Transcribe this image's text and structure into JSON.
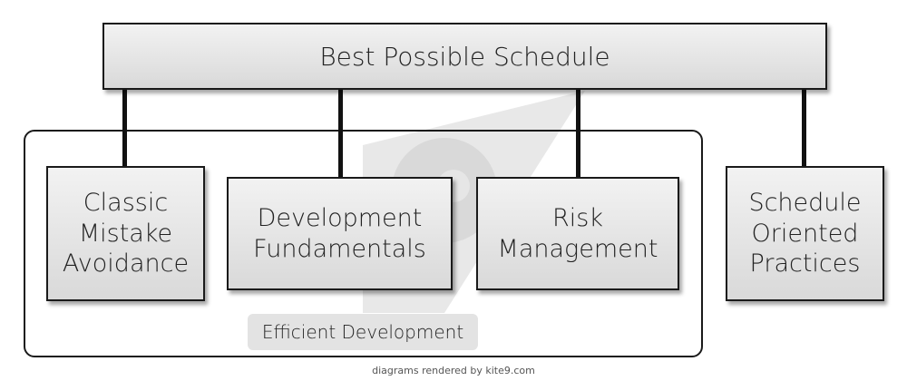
{
  "diagram": {
    "root": {
      "label": "Best Possible Schedule"
    },
    "children": [
      {
        "label": "Classic\nMistake\nAvoidance"
      },
      {
        "label": "Development\nFundamentals"
      },
      {
        "label": "Risk\nManagement"
      },
      {
        "label": "Schedule\nOriented\nPractices"
      }
    ],
    "group": {
      "label": "Efficient Development"
    },
    "colors": {
      "box_fill_top": "#f2f2f2",
      "box_fill_bottom": "#d9d9d9",
      "border": "#1a1a1a",
      "group_label_bg": "#e3e3e3",
      "watermark": "#cfcfcf"
    }
  },
  "footer": {
    "text": "diagrams rendered by kite9.com"
  }
}
